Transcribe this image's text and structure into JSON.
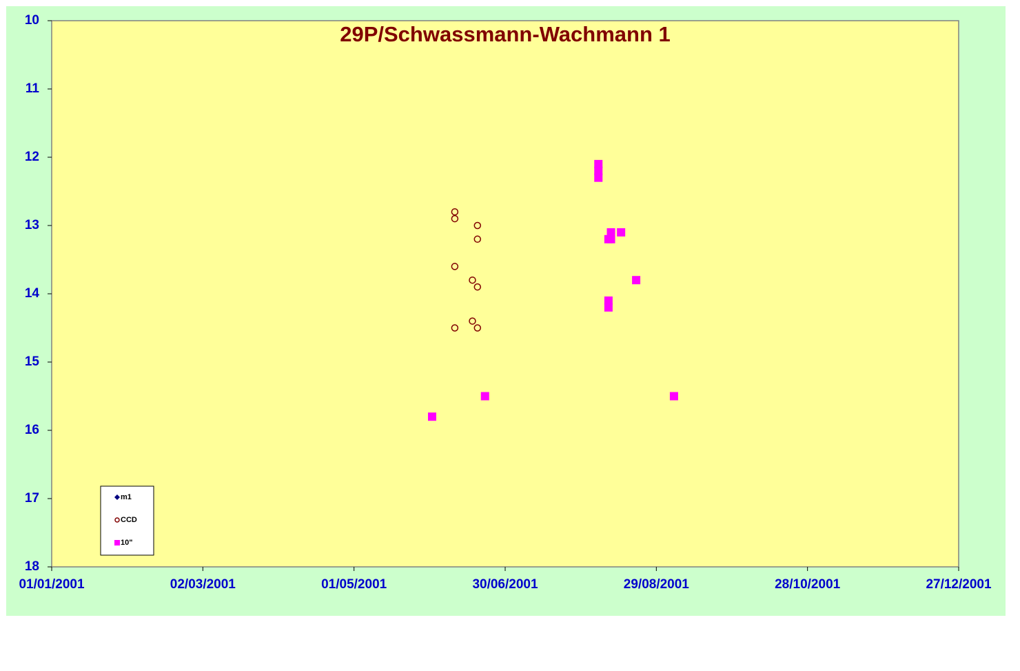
{
  "chart_data": {
    "type": "scatter",
    "title": "29P/Schwassmann-Wachmann  1",
    "xlim": [
      "2001-01-01",
      "2001-12-27"
    ],
    "xticks": [
      {
        "value": "2001-01-01",
        "label": "01/01/2001"
      },
      {
        "value": "2001-03-02",
        "label": "02/03/2001"
      },
      {
        "value": "2001-05-01",
        "label": "01/05/2001"
      },
      {
        "value": "2001-06-30",
        "label": "30/06/2001"
      },
      {
        "value": "2001-08-29",
        "label": "29/08/2001"
      },
      {
        "value": "2001-10-28",
        "label": "28/10/2001"
      },
      {
        "value": "2001-12-27",
        "label": "27/12/2001"
      }
    ],
    "ylim": [
      10,
      18
    ],
    "y_inverted": true,
    "yticks": [
      10,
      11,
      12,
      13,
      14,
      15,
      16,
      17,
      18
    ],
    "legend": "bottom-left",
    "series": [
      {
        "name": "m1",
        "color": "#000080",
        "marker": "diamond",
        "x": [],
        "values": []
      },
      {
        "name": "CCD",
        "color": "#800000",
        "marker": "circle",
        "x": [
          "2001-06-10",
          "2001-06-10",
          "2001-06-10",
          "2001-06-10",
          "2001-06-19",
          "2001-06-19",
          "2001-06-19",
          "2001-06-19",
          "2001-06-17",
          "2001-06-17"
        ],
        "values": [
          12.8,
          12.9,
          13.6,
          14.5,
          13.0,
          13.2,
          13.9,
          14.5,
          13.8,
          14.4
        ]
      },
      {
        "name": "10\"",
        "color": "#ff00ff",
        "marker": "square",
        "x": [
          "2001-06-01",
          "2001-06-22",
          "2001-08-06",
          "2001-08-06",
          "2001-08-06",
          "2001-08-10",
          "2001-08-11",
          "2001-08-11",
          "2001-08-15",
          "2001-08-10",
          "2001-08-10",
          "2001-08-21",
          "2001-09-05"
        ],
        "values": [
          15.8,
          15.5,
          12.1,
          12.2,
          12.3,
          13.2,
          13.1,
          13.2,
          13.1,
          14.1,
          14.2,
          13.8,
          15.5
        ]
      }
    ]
  }
}
